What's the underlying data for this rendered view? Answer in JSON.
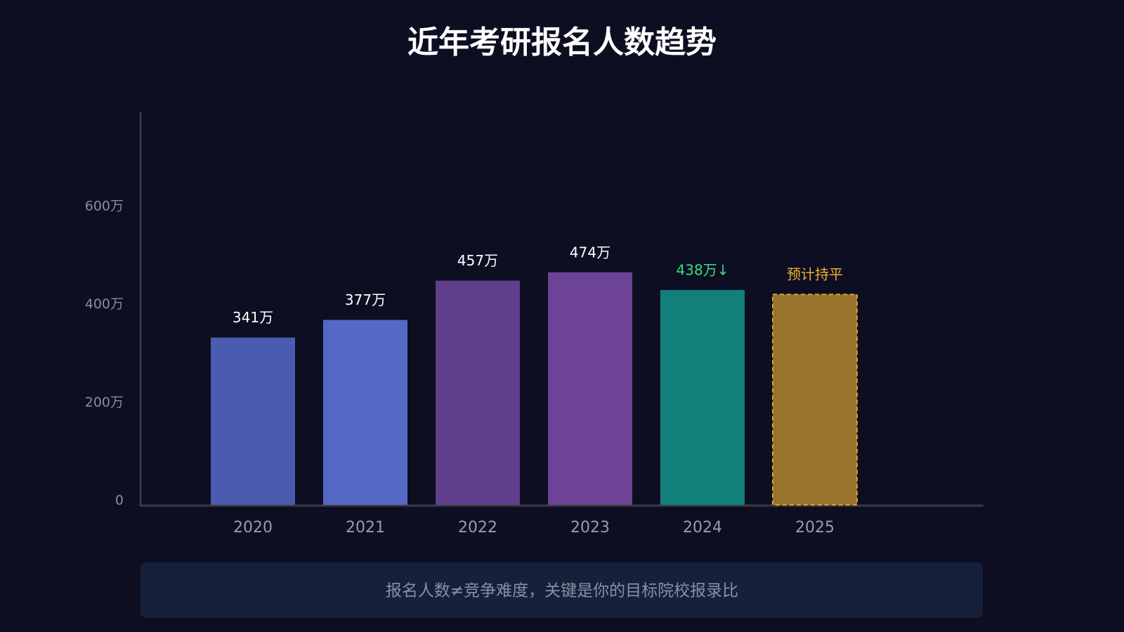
{
  "chart_data": {
    "type": "bar",
    "title": "近年考研报名人数趋势",
    "categories": [
      "2020",
      "2021",
      "2022",
      "2023",
      "2024",
      "2025"
    ],
    "values": [
      341,
      377,
      457,
      474,
      438,
      429
    ],
    "value_labels": [
      "341万",
      "377万",
      "457万",
      "474万",
      "438万↓",
      "预计持平"
    ],
    "colors": [
      "#4a5bb0",
      "#5468c4",
      "#5f3f8c",
      "#6c4396",
      "#12807a",
      "#99732c"
    ],
    "label_colors": [
      "#ffffff",
      "#ffffff",
      "#ffffff",
      "#ffffff",
      "#3ddc84",
      "#f0b030"
    ],
    "bar_styles": [
      "solid",
      "solid",
      "solid",
      "solid",
      "solid",
      "dashed"
    ],
    "dashed_border_color": "#d9a030",
    "ylim": [
      0,
      800
    ],
    "yticks": [
      0,
      {
        "value": 200,
        "label": "200万"
      },
      {
        "value": 400,
        "label": "400万"
      },
      {
        "value": 600,
        "label": "600万"
      }
    ],
    "footnote": "报名人数≠竞争难度，关键是你的目标院校报录比"
  }
}
